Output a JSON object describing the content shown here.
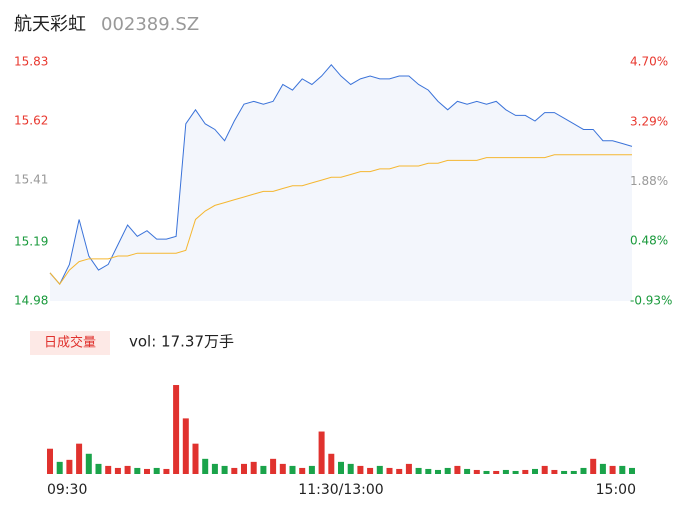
{
  "chart_data": [
    {
      "type": "line",
      "title": "航天彩虹",
      "subtitle": "002389.SZ",
      "x": [
        0,
        4,
        8,
        12,
        16,
        20,
        24,
        28,
        32,
        36,
        40,
        44,
        48,
        52,
        56,
        60,
        64,
        68,
        72,
        76,
        80,
        84,
        88,
        92,
        96,
        100,
        104,
        108,
        112,
        116,
        120,
        124,
        128,
        132,
        136,
        140,
        144,
        148,
        152,
        156,
        160,
        164,
        168,
        172,
        176,
        180,
        184,
        188,
        192,
        196,
        200,
        204,
        208,
        212,
        216,
        220,
        224,
        228,
        232,
        236,
        240
      ],
      "xlim": [
        0,
        240
      ],
      "ylim": [
        14.98,
        15.83
      ],
      "yticks": [
        15.83,
        15.62,
        15.41,
        15.19,
        14.98
      ],
      "y2lim": [
        -0.93,
        4.7
      ],
      "y2ticks": [
        {
          "value": 4.7,
          "label": "4.70%"
        },
        {
          "value": 3.29,
          "label": "3.29%"
        },
        {
          "value": 1.88,
          "label": "1.88%"
        },
        {
          "value": 0.48,
          "label": "0.48%"
        },
        {
          "value": -0.93,
          "label": "-0.93%"
        }
      ],
      "ytick_colors": [
        "#e8382f",
        "#e8382f",
        "#999999",
        "#1a9a3c",
        "#1a9a3c"
      ],
      "area_color": "#f3f6fc",
      "series": [
        {
          "name": "price",
          "color": "#3b73d9",
          "values": [
            15.08,
            15.04,
            15.11,
            15.27,
            15.14,
            15.09,
            15.11,
            15.18,
            15.25,
            15.21,
            15.23,
            15.2,
            15.2,
            15.21,
            15.61,
            15.66,
            15.61,
            15.59,
            15.55,
            15.62,
            15.68,
            15.69,
            15.68,
            15.69,
            15.75,
            15.73,
            15.77,
            15.75,
            15.78,
            15.82,
            15.78,
            15.75,
            15.77,
            15.78,
            15.77,
            15.77,
            15.78,
            15.78,
            15.75,
            15.73,
            15.69,
            15.66,
            15.69,
            15.68,
            15.69,
            15.68,
            15.69,
            15.66,
            15.64,
            15.64,
            15.62,
            15.65,
            15.65,
            15.63,
            15.61,
            15.59,
            15.59,
            15.55,
            15.55,
            15.54,
            15.53
          ]
        },
        {
          "name": "average",
          "color": "#f5b731",
          "values": [
            15.08,
            15.04,
            15.09,
            15.12,
            15.13,
            15.13,
            15.13,
            15.14,
            15.14,
            15.15,
            15.15,
            15.15,
            15.15,
            15.15,
            15.16,
            15.27,
            15.3,
            15.32,
            15.33,
            15.34,
            15.35,
            15.36,
            15.37,
            15.37,
            15.38,
            15.39,
            15.39,
            15.4,
            15.41,
            15.42,
            15.42,
            15.43,
            15.44,
            15.44,
            15.45,
            15.45,
            15.46,
            15.46,
            15.46,
            15.47,
            15.47,
            15.48,
            15.48,
            15.48,
            15.48,
            15.49,
            15.49,
            15.49,
            15.49,
            15.49,
            15.49,
            15.49,
            15.5,
            15.5,
            15.5,
            15.5,
            15.5,
            15.5,
            15.5,
            15.5,
            15.5
          ]
        }
      ]
    },
    {
      "type": "bar",
      "legend": "日成交量",
      "annotation": "vol: 17.37万手",
      "x": [
        0,
        4,
        8,
        12,
        16,
        20,
        24,
        28,
        32,
        36,
        40,
        44,
        48,
        52,
        56,
        60,
        64,
        68,
        72,
        76,
        80,
        84,
        88,
        92,
        96,
        100,
        104,
        108,
        112,
        116,
        120,
        124,
        128,
        132,
        136,
        140,
        144,
        148,
        152,
        156,
        160,
        164,
        168,
        172,
        176,
        180,
        184,
        188,
        192,
        196,
        200,
        204,
        208,
        212,
        216,
        220,
        224,
        228,
        232,
        236,
        240
      ],
      "xlim": [
        0,
        240
      ],
      "xticks": [
        {
          "value": 0,
          "label": "09:30"
        },
        {
          "value": 120,
          "label": "11:30/13:00"
        },
        {
          "value": 240,
          "label": "15:00"
        }
      ],
      "ylim": [
        0,
        9000
      ],
      "values": [
        2500,
        1200,
        1400,
        3000,
        2000,
        1000,
        800,
        600,
        800,
        600,
        500,
        600,
        500,
        8800,
        5500,
        3000,
        1500,
        1000,
        800,
        600,
        1000,
        1200,
        800,
        1500,
        1000,
        800,
        600,
        800,
        4200,
        2000,
        1200,
        1000,
        800,
        600,
        800,
        600,
        500,
        1000,
        600,
        500,
        400,
        600,
        800,
        500,
        400,
        300,
        300,
        400,
        300,
        400,
        500,
        800,
        400,
        300,
        300,
        600,
        1500,
        1000,
        800,
        800,
        600
      ],
      "up_color": "#e0322e",
      "down_color": "#1aa34a",
      "legend_bg": "#fde9e6",
      "legend_color": "#e0322e"
    }
  ]
}
